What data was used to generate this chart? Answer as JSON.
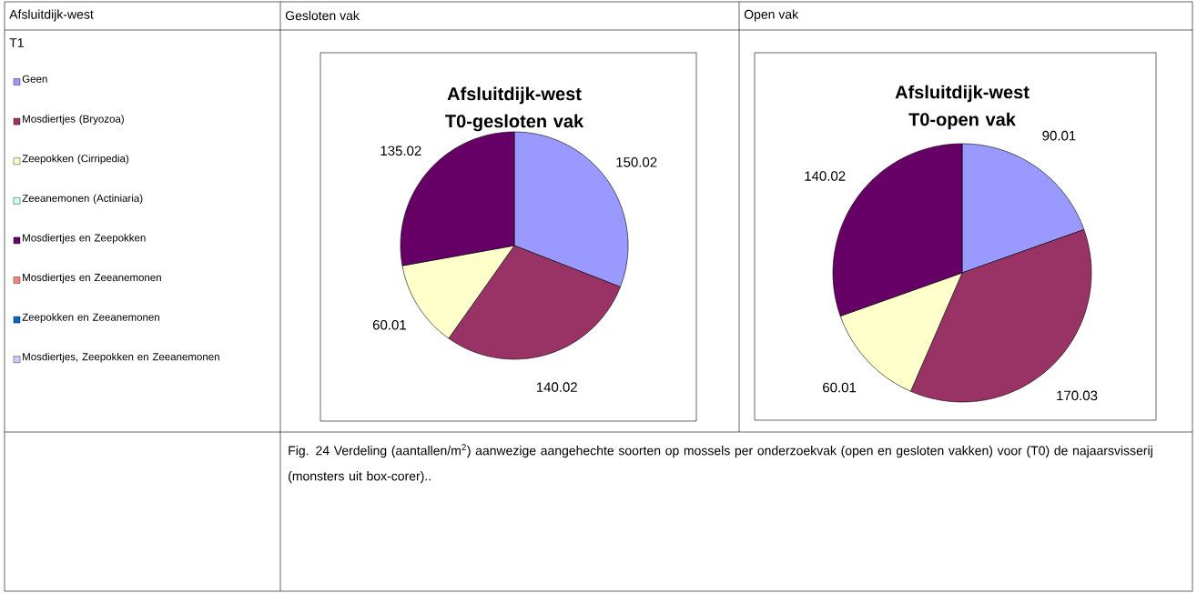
{
  "chart_data": [
    {
      "type": "pie",
      "title": "Afsluitdijk-west T0-gesloten vak",
      "legend": "left",
      "categories": [
        "Geen",
        "Mosdiertjes (Bryozoa)",
        "Zeepokken (Cirripedia)",
        "Zeeanemonen (Actiniaria)",
        "Mosdiertjes en Zeepokken",
        "Mosdiertjes en Zeeanemonen",
        "Zeepokken en Zeeanemonen",
        "Mosdiertjes, Zeepokken en Zeeanemonen"
      ],
      "values": [
        150.02,
        140.02,
        60.01,
        0,
        135.02,
        0,
        0,
        0
      ],
      "value_labels": [
        "150.02",
        "140.02",
        "60.01",
        null,
        "135.02",
        null,
        null,
        null
      ],
      "colors": [
        "#9999ff",
        "#993366",
        "#ffffcc",
        "#ccffff",
        "#660066",
        "#ff8080",
        "#0066cc",
        "#ccccff"
      ],
      "annotations": [
        "Afsluitdijk-west",
        "T1",
        "Gesloten vak",
        "Fig. 24 Verdeling (aantallen/m$^{2}$) aanwezige aangehechte soorten op mossels per onderzoekvak (open en gesloten vakken) voor (T0) de najaarsvisserij (monsters uit box-corer).."
      ]
    },
    {
      "type": "pie",
      "title": "Afsluitdijk-west T0-open vak",
      "legend": false,
      "values": [
        90.01,
        170.03,
        60.01,
        0,
        140.02,
        0,
        0,
        0
      ],
      "value_labels": [
        "90.01",
        "170.03",
        "60.01",
        null,
        "140.02",
        null,
        null,
        null
      ],
      "colors": [
        "#9999ff",
        "#993366",
        "#ffffcc",
        "#ccffff",
        "#660066",
        "#ff8080",
        "#0066cc",
        "#ccccff"
      ],
      "annotations": [
        "Open vak"
      ]
    }
  ]
}
